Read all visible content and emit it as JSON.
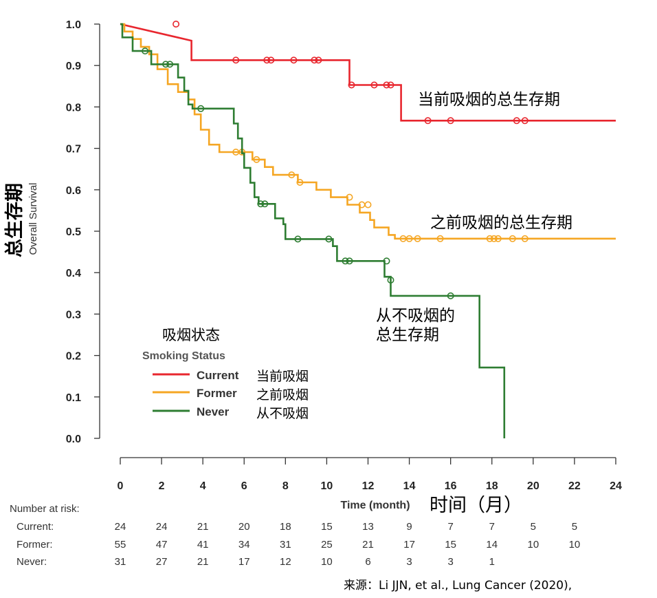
{
  "chart_data": {
    "type": "line",
    "title": "",
    "xlabel": "Time (month)",
    "xlabel_cn": "时间（月）",
    "ylabel": "Overall Survival",
    "ylabel_cn": "总生存期",
    "xlim": [
      0,
      24
    ],
    "ylim": [
      0,
      1
    ],
    "x_ticks": [
      0,
      2,
      4,
      6,
      8,
      10,
      12,
      14,
      16,
      18,
      20,
      22,
      24
    ],
    "y_ticks": [
      "0.0",
      "0.1",
      "0.2",
      "0.3",
      "0.4",
      "0.5",
      "0.6",
      "0.7",
      "0.8",
      "0.9",
      "1.0"
    ],
    "legend": {
      "title_cn": "吸烟状态",
      "title": "Smoking Status",
      "placement": "lower-left"
    },
    "series": [
      {
        "name": "Current",
        "name_cn": "当前吸烟",
        "color": "#e8262e",
        "annotation": "当前吸烟的总生存期",
        "steps": [
          [
            0,
            1.0
          ],
          [
            3.45,
            0.96
          ],
          [
            3.45,
            0.913
          ],
          [
            11.1,
            0.913
          ],
          [
            11.1,
            0.853
          ],
          [
            13.6,
            0.853
          ],
          [
            13.6,
            0.767
          ],
          [
            24,
            0.767
          ]
        ],
        "censored": [
          [
            2.7,
            1.0
          ],
          [
            5.6,
            0.913
          ],
          [
            7.1,
            0.913
          ],
          [
            7.3,
            0.913
          ],
          [
            8.4,
            0.913
          ],
          [
            9.4,
            0.913
          ],
          [
            9.6,
            0.913
          ],
          [
            11.2,
            0.853
          ],
          [
            12.3,
            0.853
          ],
          [
            12.9,
            0.853
          ],
          [
            13.1,
            0.853
          ],
          [
            14.9,
            0.767
          ],
          [
            16.0,
            0.767
          ],
          [
            19.2,
            0.767
          ],
          [
            19.6,
            0.767
          ]
        ]
      },
      {
        "name": "Former",
        "name_cn": "之前吸烟",
        "color": "#f5a623",
        "annotation": "之前吸烟的总生存期",
        "steps": [
          [
            0,
            1.0
          ],
          [
            0.2,
            1.0
          ],
          [
            0.2,
            0.982
          ],
          [
            0.6,
            0.982
          ],
          [
            0.6,
            0.964
          ],
          [
            1.0,
            0.964
          ],
          [
            1.0,
            0.945
          ],
          [
            1.4,
            0.945
          ],
          [
            1.4,
            0.927
          ],
          [
            1.8,
            0.927
          ],
          [
            1.8,
            0.891
          ],
          [
            2.3,
            0.891
          ],
          [
            2.3,
            0.855
          ],
          [
            2.8,
            0.855
          ],
          [
            2.8,
            0.836
          ],
          [
            3.3,
            0.836
          ],
          [
            3.3,
            0.818
          ],
          [
            3.6,
            0.818
          ],
          [
            3.6,
            0.782
          ],
          [
            3.9,
            0.782
          ],
          [
            3.9,
            0.745
          ],
          [
            4.3,
            0.745
          ],
          [
            4.3,
            0.709
          ],
          [
            4.8,
            0.709
          ],
          [
            4.8,
            0.691
          ],
          [
            6.4,
            0.691
          ],
          [
            6.4,
            0.673
          ],
          [
            7.0,
            0.673
          ],
          [
            7.0,
            0.655
          ],
          [
            7.4,
            0.655
          ],
          [
            7.4,
            0.636
          ],
          [
            8.6,
            0.636
          ],
          [
            8.6,
            0.618
          ],
          [
            9.5,
            0.618
          ],
          [
            9.5,
            0.6
          ],
          [
            10.2,
            0.6
          ],
          [
            10.2,
            0.582
          ],
          [
            11.0,
            0.582
          ],
          [
            11.0,
            0.564
          ],
          [
            11.6,
            0.564
          ],
          [
            11.6,
            0.545
          ],
          [
            12.1,
            0.545
          ],
          [
            12.1,
            0.527
          ],
          [
            12.3,
            0.527
          ],
          [
            12.3,
            0.509
          ],
          [
            13.0,
            0.509
          ],
          [
            13.0,
            0.491
          ],
          [
            13.3,
            0.491
          ],
          [
            13.3,
            0.482
          ],
          [
            24,
            0.482
          ]
        ],
        "censored": [
          [
            5.6,
            0.691
          ],
          [
            5.9,
            0.691
          ],
          [
            6.6,
            0.673
          ],
          [
            8.3,
            0.636
          ],
          [
            8.7,
            0.618
          ],
          [
            11.1,
            0.582
          ],
          [
            11.7,
            0.564
          ],
          [
            12.0,
            0.564
          ],
          [
            13.7,
            0.482
          ],
          [
            14.0,
            0.482
          ],
          [
            14.4,
            0.482
          ],
          [
            15.5,
            0.482
          ],
          [
            17.9,
            0.482
          ],
          [
            18.1,
            0.482
          ],
          [
            18.3,
            0.482
          ],
          [
            19.0,
            0.482
          ],
          [
            19.6,
            0.482
          ]
        ]
      },
      {
        "name": "Never",
        "name_cn": "从不吸烟",
        "color": "#2e7d32",
        "annotation": "从不吸烟的总生存期",
        "steps": [
          [
            0,
            1.0
          ],
          [
            0.1,
            1.0
          ],
          [
            0.1,
            0.968
          ],
          [
            0.6,
            0.968
          ],
          [
            0.6,
            0.935
          ],
          [
            1.5,
            0.935
          ],
          [
            1.5,
            0.903
          ],
          [
            2.8,
            0.903
          ],
          [
            2.8,
            0.871
          ],
          [
            3.1,
            0.871
          ],
          [
            3.1,
            0.839
          ],
          [
            3.3,
            0.839
          ],
          [
            3.3,
            0.806
          ],
          [
            3.5,
            0.806
          ],
          [
            3.5,
            0.796
          ],
          [
            5.5,
            0.796
          ],
          [
            5.5,
            0.76
          ],
          [
            5.7,
            0.76
          ],
          [
            5.7,
            0.724
          ],
          [
            5.9,
            0.724
          ],
          [
            5.9,
            0.688
          ],
          [
            6.0,
            0.688
          ],
          [
            6.0,
            0.653
          ],
          [
            6.3,
            0.653
          ],
          [
            6.3,
            0.617
          ],
          [
            6.5,
            0.617
          ],
          [
            6.5,
            0.582
          ],
          [
            6.7,
            0.582
          ],
          [
            6.7,
            0.566
          ],
          [
            7.5,
            0.566
          ],
          [
            7.5,
            0.531
          ],
          [
            7.9,
            0.531
          ],
          [
            7.9,
            0.517
          ],
          [
            8.0,
            0.517
          ],
          [
            8.0,
            0.481
          ],
          [
            10.3,
            0.481
          ],
          [
            10.3,
            0.464
          ],
          [
            10.5,
            0.464
          ],
          [
            10.5,
            0.428
          ],
          [
            12.8,
            0.428
          ],
          [
            12.8,
            0.39
          ],
          [
            13.1,
            0.39
          ],
          [
            13.1,
            0.344
          ],
          [
            17.4,
            0.344
          ],
          [
            17.4,
            0.171
          ],
          [
            18.6,
            0.171
          ],
          [
            18.6,
            0.0
          ]
        ],
        "censored": [
          [
            1.2,
            0.935
          ],
          [
            2.2,
            0.903
          ],
          [
            2.4,
            0.903
          ],
          [
            3.9,
            0.796
          ],
          [
            6.8,
            0.566
          ],
          [
            7.0,
            0.566
          ],
          [
            8.6,
            0.481
          ],
          [
            10.1,
            0.481
          ],
          [
            10.9,
            0.428
          ],
          [
            11.1,
            0.428
          ],
          [
            12.9,
            0.428
          ],
          [
            13.1,
            0.382
          ],
          [
            16.0,
            0.344
          ]
        ]
      }
    ],
    "risk_table": {
      "title": "Number at risk:",
      "times": [
        0,
        2,
        4,
        6,
        8,
        10,
        12,
        14,
        16,
        18,
        20,
        22
      ],
      "rows": [
        {
          "label": "Current:",
          "values": [
            "24",
            "24",
            "21",
            "20",
            "18",
            "15",
            "13",
            "9",
            "7",
            "7",
            "5",
            "5"
          ]
        },
        {
          "label": "Former:",
          "values": [
            "55",
            "47",
            "41",
            "34",
            "31",
            "25",
            "21",
            "17",
            "15",
            "14",
            "10",
            "10"
          ]
        },
        {
          "label": "Never:",
          "values": [
            "31",
            "27",
            "21",
            "17",
            "12",
            "10",
            "6",
            "3",
            "3",
            "1",
            "",
            ""
          ]
        }
      ]
    },
    "source": "来源：Li JJN, et al., Lung Cancer (2020),"
  }
}
